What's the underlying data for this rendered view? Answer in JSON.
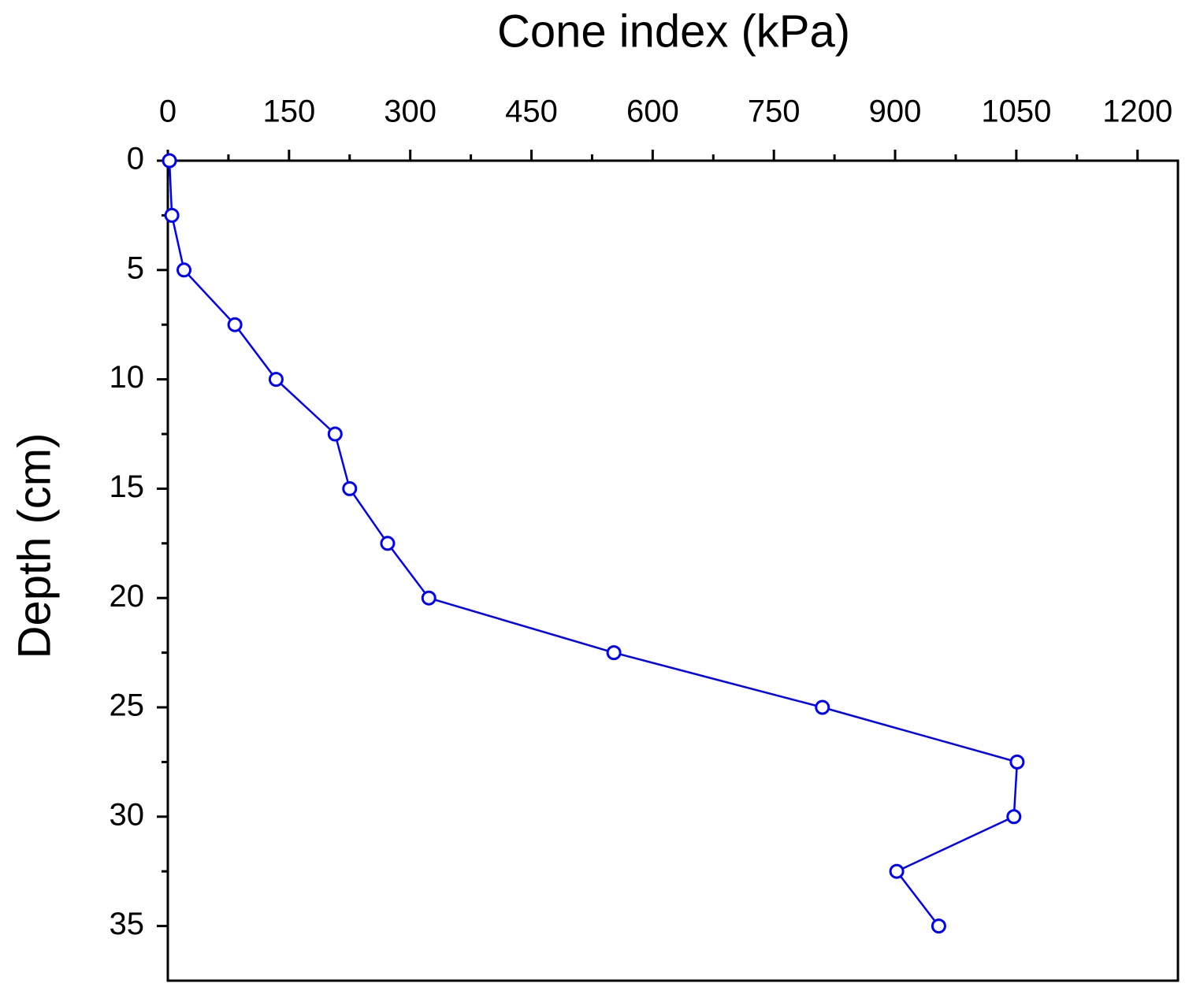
{
  "chart_data": {
    "type": "line",
    "x_label": "Cone index (kPa)",
    "y_label": "Depth (cm)",
    "x": [
      2,
      5,
      20,
      83,
      134,
      207,
      225,
      272,
      323,
      552,
      810,
      1051,
      1047,
      902,
      954
    ],
    "y": [
      0,
      2.5,
      5,
      7.5,
      10,
      12.5,
      15,
      17.5,
      20,
      22.5,
      25,
      27.5,
      30,
      32.5,
      35
    ],
    "color": "#0000ff",
    "marker": "open-circle",
    "xlim": [
      0,
      1250
    ],
    "ylim": [
      0,
      37.5
    ],
    "y_inverted": true,
    "x_axis_position": "top",
    "xticks": [
      0,
      150,
      300,
      450,
      600,
      750,
      900,
      1050,
      1200
    ],
    "yticks": [
      0,
      5,
      10,
      15,
      20,
      25,
      30,
      35
    ],
    "x_minor_ticks": [
      75,
      225,
      375,
      525,
      675,
      825,
      975,
      1125
    ],
    "y_minor_ticks": [
      2.5,
      7.5,
      12.5,
      17.5,
      22.5,
      27.5,
      32.5
    ],
    "grid": false
  }
}
